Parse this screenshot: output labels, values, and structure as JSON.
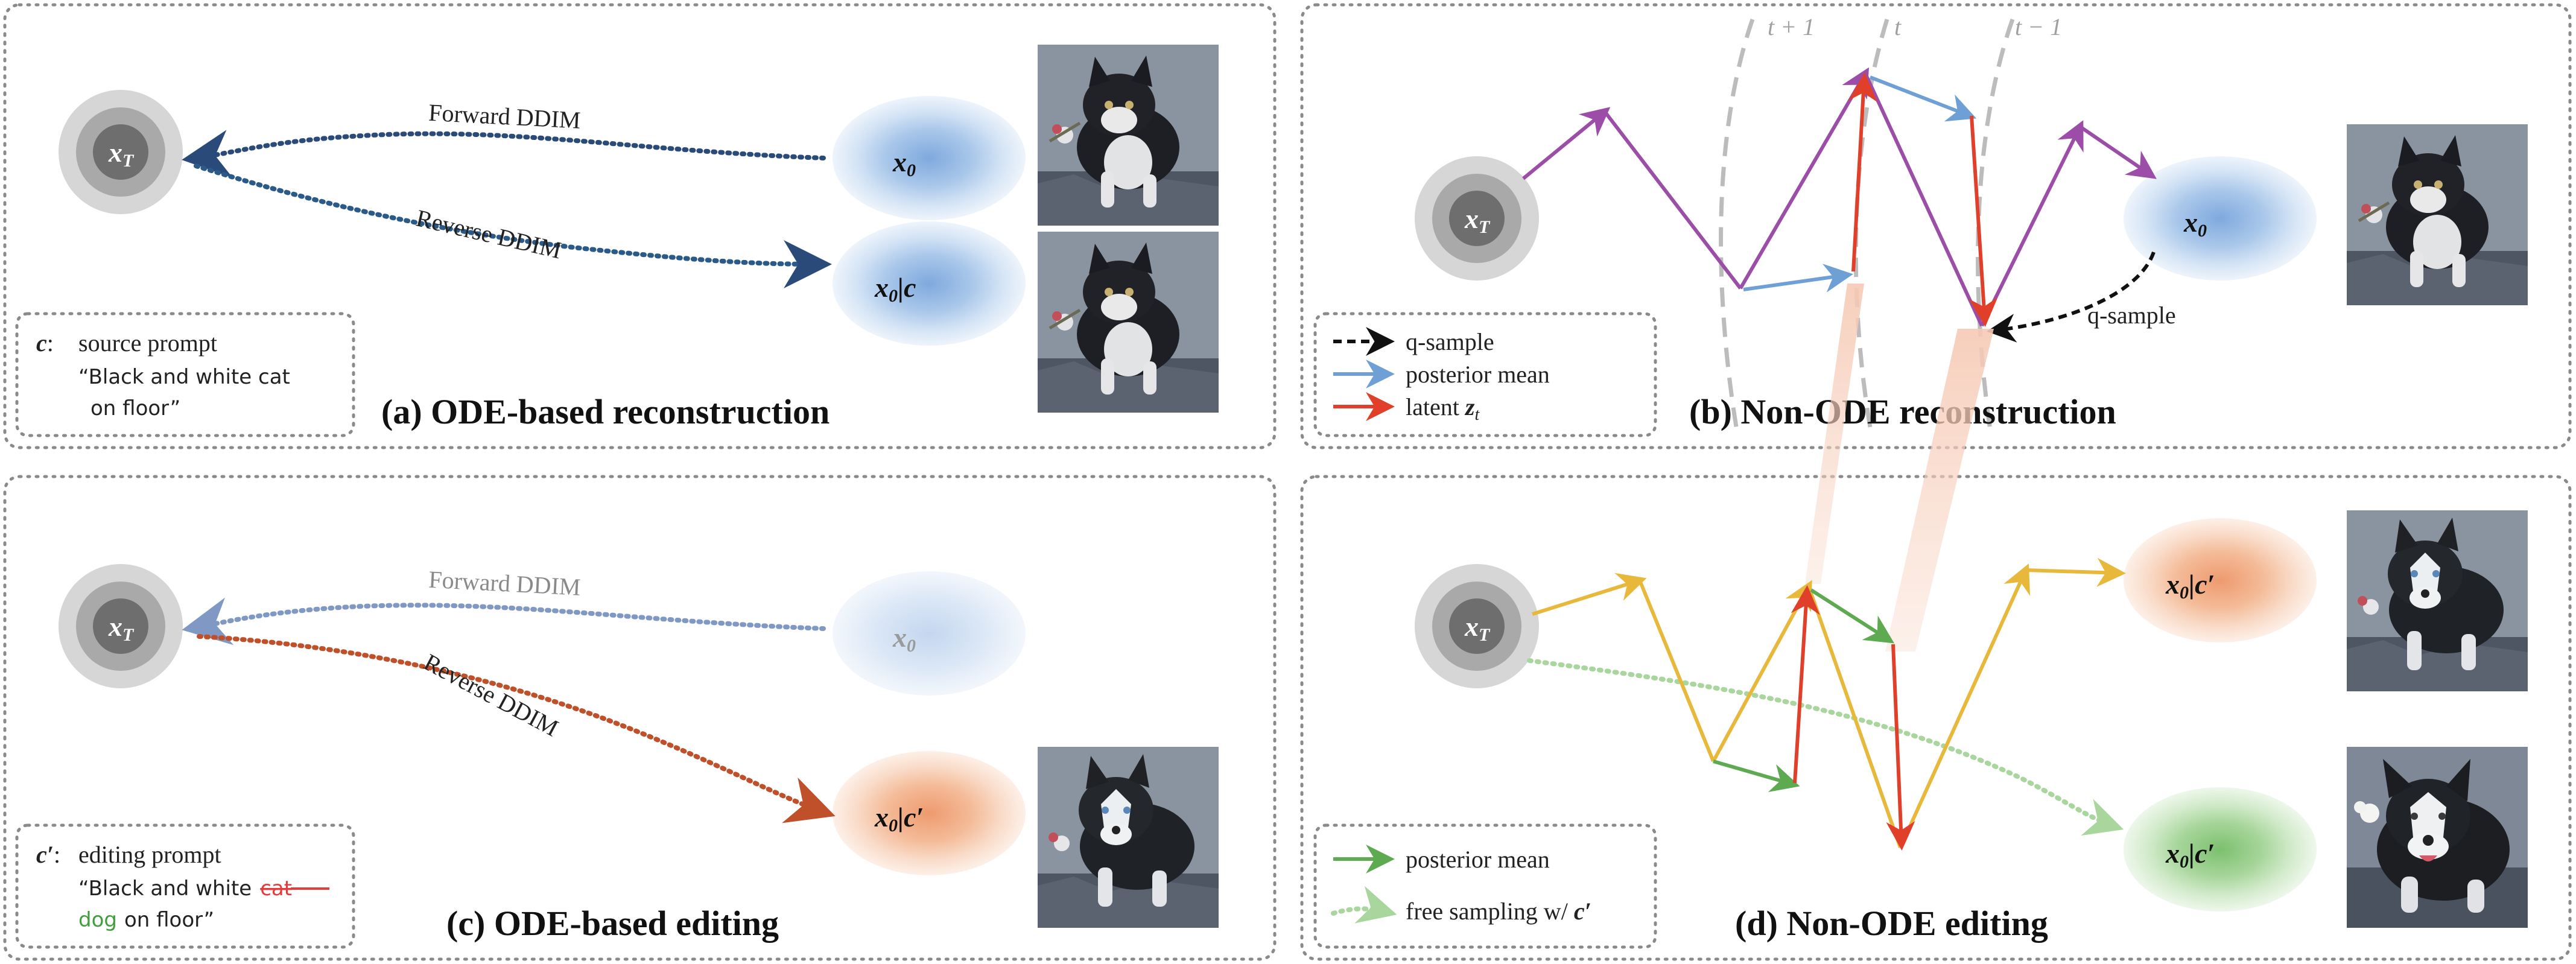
{
  "panels": {
    "a": {
      "title": "(a) ODE-based reconstruction"
    },
    "b": {
      "title": "(b) Non-ODE reconstruction"
    },
    "c": {
      "title": "(c) ODE-based editing"
    },
    "d": {
      "title": "(d) Non-ODE editing"
    }
  },
  "nodes": {
    "xT": "x",
    "xT_sub": "T",
    "x0": "x",
    "x0_sub": "0",
    "x0c": "x",
    "x0c_sub": "0",
    "cond": "|c",
    "cond_prime": "|c′"
  },
  "arrows": {
    "forward_ddim": "Forward DDIM",
    "reverse_ddim": "Reverse DDIM",
    "q_sample": "q-sample"
  },
  "timesteps": {
    "t_plus_1": "t + 1",
    "t": "t",
    "t_minus_1": "t − 1"
  },
  "prompt_a": {
    "symbol": "c",
    "label": "source prompt",
    "line1": "“Black and white cat",
    "line2": "on floor”"
  },
  "prompt_c": {
    "symbol": "c′",
    "label": "editing prompt",
    "line1_prefix": "“Black and white",
    "struck_word": "cat",
    "new_word": "dog",
    "line2_suffix": "on floor”"
  },
  "legend_b": {
    "items": [
      {
        "label": "q-sample",
        "color": "#111111"
      },
      {
        "label": "posterior mean",
        "color": "#6ea0d6"
      },
      {
        "label": "latent ",
        "label_math": "z",
        "label_sub": "t",
        "color": "#e8432f"
      }
    ]
  },
  "legend_d": {
    "items": [
      {
        "label": "posterior mean",
        "color": "#5daa50"
      },
      {
        "label": "free sampling w/ ",
        "label_math": "c′",
        "color": "#9fd38c"
      }
    ]
  },
  "colors": {
    "forward_blue": "#2a4a7a",
    "reverse_blue": "#2a5a8a",
    "purple": "#9b4da7",
    "orange_yellow": "#e8b83a",
    "red": "#e0402a",
    "light_blue": "#6ea0d6",
    "green": "#5daa50",
    "edit_red": "#c0502a"
  },
  "icons": {
    "photo": "cat-photo",
    "photo_dog": "dog-photo"
  }
}
